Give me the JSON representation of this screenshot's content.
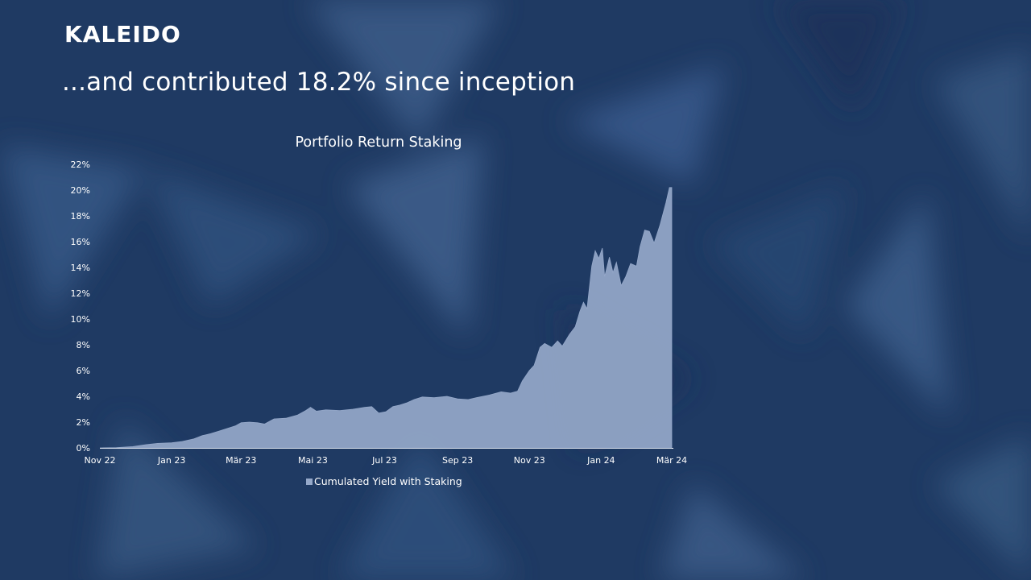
{
  "brand": {
    "logo": "KALEIDO"
  },
  "headline": "...and contributed 18.2% since inception",
  "colors": {
    "background": "#1f3a63",
    "area_fill": "#95a8c9",
    "text": "#ffffff"
  },
  "chart_data": {
    "type": "area",
    "title": "Portfolio Return Staking",
    "xlabel": "",
    "ylabel": "",
    "y_unit": "%",
    "ylim": [
      0,
      22
    ],
    "y_ticks": [
      0,
      2,
      4,
      6,
      8,
      10,
      12,
      14,
      16,
      18,
      20,
      22
    ],
    "y_tick_labels": [
      "0%",
      "2%",
      "4%",
      "6%",
      "8%",
      "10%",
      "12%",
      "14%",
      "16%",
      "18%",
      "20%",
      "22%"
    ],
    "x_range": [
      "2022-11-01",
      "2024-03-01"
    ],
    "x_ticks": [
      {
        "date": "2022-11-01",
        "label": "Nov 22"
      },
      {
        "date": "2023-01-01",
        "label": "Jan 23"
      },
      {
        "date": "2023-03-01",
        "label": "Mär 23"
      },
      {
        "date": "2023-05-01",
        "label": "Mai 23"
      },
      {
        "date": "2023-07-01",
        "label": "Jul 23"
      },
      {
        "date": "2023-09-01",
        "label": "Sep 23"
      },
      {
        "date": "2023-11-01",
        "label": "Nov 23"
      },
      {
        "date": "2024-01-01",
        "label": "Jan 24"
      },
      {
        "date": "2024-03-01",
        "label": "Mär 24"
      }
    ],
    "grid": false,
    "legend_position": "bottom",
    "series": [
      {
        "name": "Cumulated Yield with Staking",
        "color": "#95a8c9",
        "points": [
          [
            "2022-11-01",
            0.0
          ],
          [
            "2022-11-15",
            0.02
          ],
          [
            "2022-11-29",
            0.1
          ],
          [
            "2022-12-10",
            0.25
          ],
          [
            "2022-12-20",
            0.35
          ],
          [
            "2023-01-01",
            0.4
          ],
          [
            "2023-01-10",
            0.5
          ],
          [
            "2023-01-20",
            0.7
          ],
          [
            "2023-01-27",
            0.95
          ],
          [
            "2023-02-03",
            1.1
          ],
          [
            "2023-02-10",
            1.3
          ],
          [
            "2023-02-17",
            1.5
          ],
          [
            "2023-02-24",
            1.7
          ],
          [
            "2023-03-01",
            1.95
          ],
          [
            "2023-03-08",
            2.0
          ],
          [
            "2023-03-15",
            1.95
          ],
          [
            "2023-03-21",
            1.85
          ],
          [
            "2023-03-29",
            2.25
          ],
          [
            "2023-04-08",
            2.3
          ],
          [
            "2023-04-18",
            2.55
          ],
          [
            "2023-04-25",
            2.9
          ],
          [
            "2023-04-29",
            3.15
          ],
          [
            "2023-05-04",
            2.85
          ],
          [
            "2023-05-12",
            2.95
          ],
          [
            "2023-05-24",
            2.9
          ],
          [
            "2023-06-04",
            3.0
          ],
          [
            "2023-06-14",
            3.15
          ],
          [
            "2023-06-20",
            3.2
          ],
          [
            "2023-06-26",
            2.7
          ],
          [
            "2023-07-02",
            2.8
          ],
          [
            "2023-07-08",
            3.2
          ],
          [
            "2023-07-13",
            3.3
          ],
          [
            "2023-07-20",
            3.5
          ],
          [
            "2023-07-26",
            3.75
          ],
          [
            "2023-08-02",
            3.95
          ],
          [
            "2023-08-12",
            3.9
          ],
          [
            "2023-08-23",
            4.0
          ],
          [
            "2023-09-01",
            3.8
          ],
          [
            "2023-09-10",
            3.75
          ],
          [
            "2023-09-17",
            3.9
          ],
          [
            "2023-09-28",
            4.1
          ],
          [
            "2023-10-08",
            4.35
          ],
          [
            "2023-10-16",
            4.25
          ],
          [
            "2023-10-22",
            4.4
          ],
          [
            "2023-10-26",
            5.2
          ],
          [
            "2023-11-01",
            6.0
          ],
          [
            "2023-11-05",
            6.4
          ],
          [
            "2023-11-10",
            7.8
          ],
          [
            "2023-11-14",
            8.1
          ],
          [
            "2023-11-20",
            7.8
          ],
          [
            "2023-11-25",
            8.3
          ],
          [
            "2023-11-29",
            7.9
          ],
          [
            "2023-12-05",
            8.8
          ],
          [
            "2023-12-10",
            9.4
          ],
          [
            "2023-12-14",
            10.6
          ],
          [
            "2023-12-17",
            11.3
          ],
          [
            "2023-12-20",
            10.8
          ],
          [
            "2023-12-24",
            14.1
          ],
          [
            "2023-12-27",
            15.3
          ],
          [
            "2023-12-30",
            14.7
          ],
          [
            "2024-01-02",
            15.5
          ],
          [
            "2024-01-04",
            13.3
          ],
          [
            "2024-01-08",
            14.8
          ],
          [
            "2024-01-11",
            13.6
          ],
          [
            "2024-01-14",
            14.4
          ],
          [
            "2024-01-18",
            12.6
          ],
          [
            "2024-01-22",
            13.3
          ],
          [
            "2024-01-26",
            14.3
          ],
          [
            "2024-01-31",
            14.1
          ],
          [
            "2024-02-03",
            15.6
          ],
          [
            "2024-02-07",
            16.9
          ],
          [
            "2024-02-11",
            16.8
          ],
          [
            "2024-02-15",
            15.9
          ],
          [
            "2024-02-20",
            17.3
          ],
          [
            "2024-02-25",
            19.0
          ],
          [
            "2024-02-28",
            20.2
          ],
          [
            "2024-03-01",
            20.2
          ]
        ]
      }
    ]
  }
}
